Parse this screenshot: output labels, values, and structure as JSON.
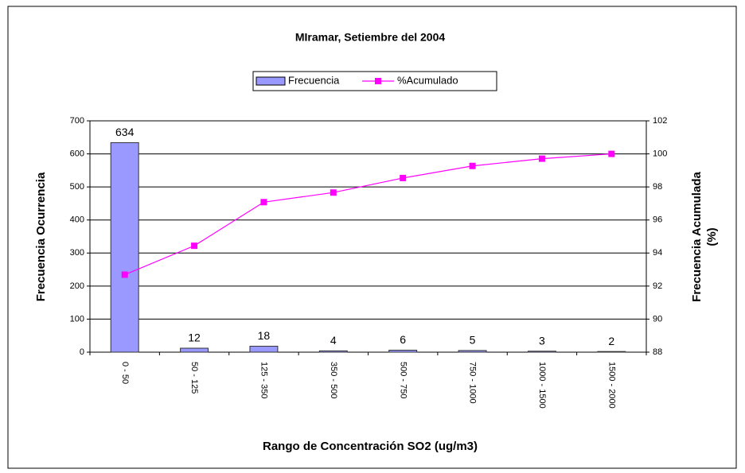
{
  "chart_data": {
    "type": "bar",
    "title": "MIramar, Setiembre del 2004",
    "xlabel": "Rango de Concentración SO2 (ug/m3)",
    "ylabel": "Frecuencia Ocurrencia",
    "y2label": [
      "Frecuencia Acumulada",
      "(%)"
    ],
    "categories": [
      "0 - 50",
      "50 - 125",
      "125 - 350",
      "350 - 500",
      "500 - 750",
      "750 - 1000",
      "1000 - 1500",
      "1500 - 2000"
    ],
    "series": [
      {
        "name": "Frecuencia",
        "type": "bar",
        "color": "#9999ff",
        "values": [
          634,
          12,
          18,
          4,
          6,
          5,
          3,
          2
        ]
      },
      {
        "name": "%Acumulado",
        "type": "line",
        "axis": "y2",
        "color": "#ff00ff",
        "values": [
          92.69,
          94.44,
          97.08,
          97.66,
          98.54,
          99.27,
          99.71,
          100
        ]
      }
    ],
    "ylim": [
      0,
      700
    ],
    "yticks": [
      0,
      100,
      200,
      300,
      400,
      500,
      600,
      700
    ],
    "y2lim": [
      88,
      102
    ],
    "y2ticks": [
      88,
      90,
      92,
      94,
      96,
      98,
      100,
      102
    ],
    "grid": true,
    "legend": "top"
  }
}
